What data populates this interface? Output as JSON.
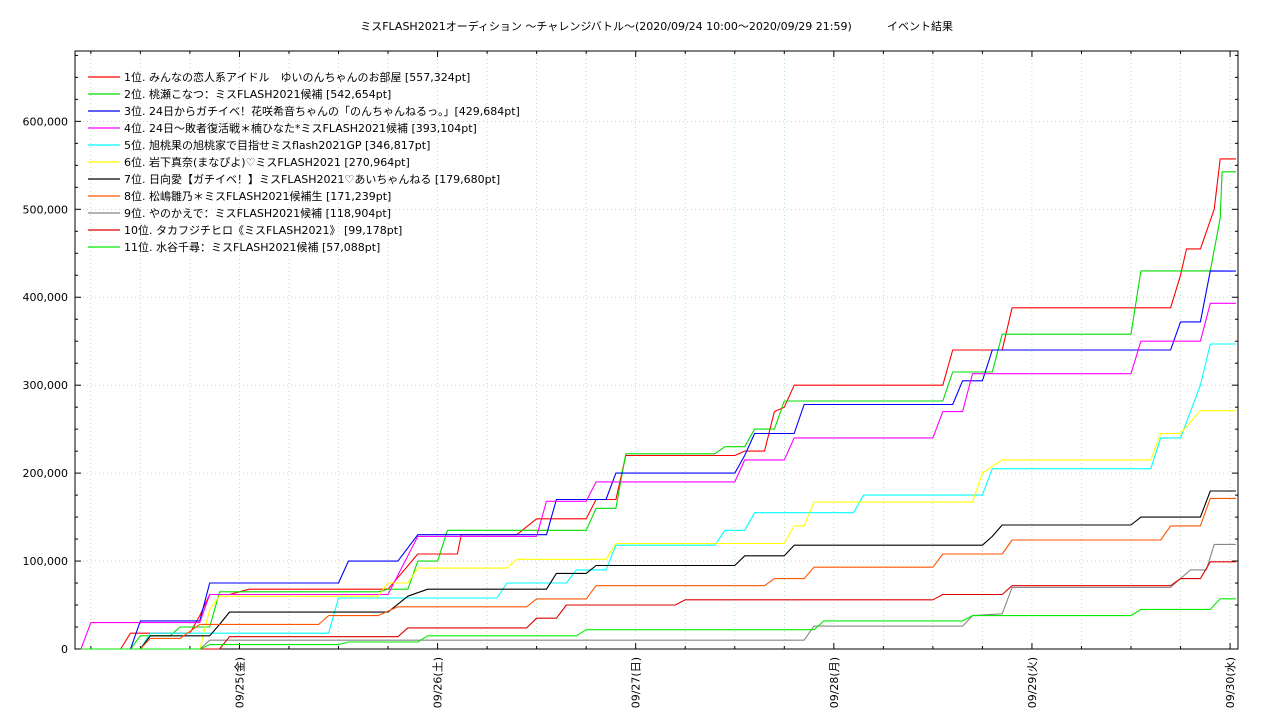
{
  "chart_data": {
    "type": "line",
    "title": "ミスFLASH2021オーディション 〜チャレンジバトル〜(2020/09/24 10:00〜2020/09/29 21:59)",
    "subtitle": "イベント結果",
    "xlabel": "",
    "ylabel": "",
    "xlim": [
      -0.83,
      5.04
    ],
    "ylim": [
      0,
      680000
    ],
    "y_ticks": [
      0,
      100000,
      200000,
      300000,
      400000,
      500000,
      600000
    ],
    "y_tick_labels": [
      "0",
      "100,000",
      "200,000",
      "300,000",
      "400,000",
      "500,000",
      "600,000"
    ],
    "x_ticks": [
      0,
      1,
      2,
      3,
      4,
      5
    ],
    "x_tick_labels": [
      "09/25(金)",
      "09/26(土)",
      "09/27(日)",
      "09/28(月)",
      "09/29(火)",
      "09/30(水)"
    ],
    "grid": true,
    "legend_position": "top-left",
    "series": [
      {
        "name": "1位. みんなの恋人系アイドル　ゆいのんちゃんのお部屋 [557,324pt]",
        "color": "#ff0000",
        "points": [
          [
            -0.8,
            0
          ],
          [
            -0.6,
            0
          ],
          [
            -0.55,
            18000
          ],
          [
            -0.25,
            18000
          ],
          [
            -0.2,
            38000
          ],
          [
            -0.15,
            62000
          ],
          [
            -0.05,
            62000
          ],
          [
            0.05,
            68000
          ],
          [
            0.75,
            68000
          ],
          [
            0.9,
            108000
          ],
          [
            1.1,
            108000
          ],
          [
            1.12,
            130000
          ],
          [
            1.4,
            130000
          ],
          [
            1.5,
            148000
          ],
          [
            1.75,
            148000
          ],
          [
            1.8,
            170000
          ],
          [
            1.9,
            170000
          ],
          [
            1.95,
            220000
          ],
          [
            2.5,
            220000
          ],
          [
            2.55,
            225000
          ],
          [
            2.65,
            225000
          ],
          [
            2.7,
            270000
          ],
          [
            2.75,
            275000
          ],
          [
            2.8,
            300000
          ],
          [
            3.55,
            300000
          ],
          [
            3.6,
            340000
          ],
          [
            3.85,
            340000
          ],
          [
            3.9,
            388000
          ],
          [
            4.7,
            388000
          ],
          [
            4.75,
            425000
          ],
          [
            4.78,
            455000
          ],
          [
            4.85,
            455000
          ],
          [
            4.92,
            500000
          ],
          [
            4.95,
            557324
          ],
          [
            5.03,
            557324
          ]
        ]
      },
      {
        "name": "2位. 桃瀬こなつ：ミスFLASH2021候補 [542,654pt]",
        "color": "#00dd00",
        "points": [
          [
            -0.8,
            0
          ],
          [
            -0.55,
            0
          ],
          [
            -0.5,
            15000
          ],
          [
            -0.35,
            15000
          ],
          [
            -0.3,
            25000
          ],
          [
            -0.15,
            25000
          ],
          [
            -0.1,
            65000
          ],
          [
            0.7,
            65000
          ],
          [
            0.75,
            68000
          ],
          [
            0.85,
            68000
          ],
          [
            0.9,
            100000
          ],
          [
            1.0,
            100000
          ],
          [
            1.05,
            135000
          ],
          [
            1.75,
            135000
          ],
          [
            1.8,
            160000
          ],
          [
            1.9,
            160000
          ],
          [
            1.95,
            222000
          ],
          [
            2.4,
            222000
          ],
          [
            2.45,
            230000
          ],
          [
            2.55,
            230000
          ],
          [
            2.6,
            250000
          ],
          [
            2.7,
            250000
          ],
          [
            2.75,
            282000
          ],
          [
            3.55,
            282000
          ],
          [
            3.6,
            315000
          ],
          [
            3.8,
            315000
          ],
          [
            3.85,
            358000
          ],
          [
            4.5,
            358000
          ],
          [
            4.55,
            430000
          ],
          [
            4.9,
            430000
          ],
          [
            4.95,
            490000
          ],
          [
            4.96,
            542654
          ],
          [
            5.03,
            542654
          ]
        ]
      },
      {
        "name": "3位. 24日からガチイベ！花咲希音ちゃんの「のんちゃんねるっ。」[429,684pt]",
        "color": "#0000ff",
        "points": [
          [
            -0.8,
            0
          ],
          [
            -0.55,
            0
          ],
          [
            -0.5,
            32000
          ],
          [
            -0.2,
            32000
          ],
          [
            -0.15,
            75000
          ],
          [
            0.5,
            75000
          ],
          [
            0.55,
            100000
          ],
          [
            0.8,
            100000
          ],
          [
            0.9,
            130000
          ],
          [
            1.55,
            130000
          ],
          [
            1.6,
            170000
          ],
          [
            1.85,
            170000
          ],
          [
            1.9,
            200000
          ],
          [
            2.5,
            200000
          ],
          [
            2.55,
            220000
          ],
          [
            2.6,
            245000
          ],
          [
            2.8,
            245000
          ],
          [
            2.85,
            278000
          ],
          [
            3.6,
            278000
          ],
          [
            3.65,
            305000
          ],
          [
            3.75,
            305000
          ],
          [
            3.8,
            340000
          ],
          [
            4.7,
            340000
          ],
          [
            4.75,
            372000
          ],
          [
            4.85,
            372000
          ],
          [
            4.9,
            430000
          ],
          [
            5.03,
            429684
          ]
        ]
      },
      {
        "name": "4位. 24日〜敗者復活戦＊楠ひなた*ミスFLASH2021候補 [393,104pt]",
        "color": "#ff00ff",
        "points": [
          [
            -0.8,
            0
          ],
          [
            -0.75,
            30000
          ],
          [
            -0.2,
            30000
          ],
          [
            -0.15,
            62000
          ],
          [
            0.75,
            62000
          ],
          [
            0.9,
            128000
          ],
          [
            1.5,
            128000
          ],
          [
            1.55,
            168000
          ],
          [
            1.75,
            168000
          ],
          [
            1.8,
            190000
          ],
          [
            2.5,
            190000
          ],
          [
            2.55,
            215000
          ],
          [
            2.75,
            215000
          ],
          [
            2.8,
            240000
          ],
          [
            3.5,
            240000
          ],
          [
            3.55,
            270000
          ],
          [
            3.65,
            270000
          ],
          [
            3.7,
            313000
          ],
          [
            4.5,
            313000
          ],
          [
            4.55,
            350000
          ],
          [
            4.85,
            350000
          ],
          [
            4.9,
            393104
          ],
          [
            5.03,
            393104
          ]
        ]
      },
      {
        "name": "5位. 旭桃果の旭桃家で目指せミスflash2021GP [346,817pt]",
        "color": "#00ffff",
        "points": [
          [
            -0.8,
            0
          ],
          [
            -0.5,
            0
          ],
          [
            -0.45,
            18000
          ],
          [
            0.45,
            18000
          ],
          [
            0.5,
            58000
          ],
          [
            1.3,
            58000
          ],
          [
            1.35,
            75000
          ],
          [
            1.65,
            75000
          ],
          [
            1.7,
            90000
          ],
          [
            1.85,
            90000
          ],
          [
            1.9,
            118000
          ],
          [
            2.4,
            118000
          ],
          [
            2.45,
            135000
          ],
          [
            2.55,
            135000
          ],
          [
            2.6,
            155000
          ],
          [
            3.1,
            155000
          ],
          [
            3.15,
            175000
          ],
          [
            3.75,
            175000
          ],
          [
            3.8,
            205000
          ],
          [
            4.6,
            205000
          ],
          [
            4.65,
            240000
          ],
          [
            4.75,
            240000
          ],
          [
            4.85,
            300000
          ],
          [
            4.9,
            346817
          ],
          [
            5.03,
            346817
          ]
        ]
      },
      {
        "name": "6位. 岩下真奈(まなぴよ)♡ミスFLASH2021 [270,964pt]",
        "color": "#ffff00",
        "points": [
          [
            -0.8,
            0
          ],
          [
            -0.2,
            0
          ],
          [
            -0.15,
            45000
          ],
          [
            -0.1,
            60000
          ],
          [
            0.7,
            60000
          ],
          [
            0.75,
            75000
          ],
          [
            0.85,
            75000
          ],
          [
            0.9,
            92000
          ],
          [
            1.35,
            92000
          ],
          [
            1.4,
            102000
          ],
          [
            1.85,
            102000
          ],
          [
            1.9,
            120000
          ],
          [
            2.75,
            120000
          ],
          [
            2.8,
            140000
          ],
          [
            2.85,
            140000
          ],
          [
            2.9,
            167000
          ],
          [
            3.7,
            167000
          ],
          [
            3.75,
            200000
          ],
          [
            3.85,
            215000
          ],
          [
            4.6,
            215000
          ],
          [
            4.65,
            245000
          ],
          [
            4.75,
            245000
          ],
          [
            4.85,
            270964
          ],
          [
            5.03,
            270964
          ]
        ]
      },
      {
        "name": "7位. 日向愛【ガチイベ！】ミスFLASH2021♡あいちゃんねる [179,680pt]",
        "color": "#000000",
        "points": [
          [
            -0.8,
            0
          ],
          [
            -0.5,
            0
          ],
          [
            -0.45,
            15000
          ],
          [
            -0.15,
            15000
          ],
          [
            -0.1,
            28000
          ],
          [
            -0.05,
            42000
          ],
          [
            0.75,
            42000
          ],
          [
            0.85,
            60000
          ],
          [
            0.95,
            68000
          ],
          [
            1.55,
            68000
          ],
          [
            1.6,
            86000
          ],
          [
            1.75,
            86000
          ],
          [
            1.8,
            95000
          ],
          [
            2.5,
            95000
          ],
          [
            2.55,
            106000
          ],
          [
            2.75,
            106000
          ],
          [
            2.8,
            118000
          ],
          [
            3.75,
            118000
          ],
          [
            3.8,
            128000
          ],
          [
            3.85,
            141000
          ],
          [
            4.5,
            141000
          ],
          [
            4.55,
            150000
          ],
          [
            4.85,
            150000
          ],
          [
            4.9,
            179680
          ],
          [
            5.03,
            179680
          ]
        ]
      },
      {
        "name": "8位. 松嶋雛乃＊ミスFLASH2021候補生 [171,239pt]",
        "color": "#ff5500",
        "points": [
          [
            -0.8,
            0
          ],
          [
            -0.5,
            0
          ],
          [
            -0.45,
            12000
          ],
          [
            -0.3,
            12000
          ],
          [
            -0.2,
            28000
          ],
          [
            0.4,
            28000
          ],
          [
            0.45,
            38000
          ],
          [
            0.7,
            38000
          ],
          [
            0.8,
            48000
          ],
          [
            1.45,
            48000
          ],
          [
            1.5,
            57000
          ],
          [
            1.75,
            57000
          ],
          [
            1.8,
            72000
          ],
          [
            2.65,
            72000
          ],
          [
            2.7,
            80000
          ],
          [
            2.85,
            80000
          ],
          [
            2.9,
            93000
          ],
          [
            3.5,
            93000
          ],
          [
            3.55,
            108000
          ],
          [
            3.85,
            108000
          ],
          [
            3.9,
            124000
          ],
          [
            4.65,
            124000
          ],
          [
            4.7,
            140000
          ],
          [
            4.85,
            140000
          ],
          [
            4.9,
            171239
          ],
          [
            5.03,
            171239
          ]
        ]
      },
      {
        "name": "9位. やのかえで：ミスFLASH2021候補 [118,904pt]",
        "color": "#888888",
        "points": [
          [
            -0.8,
            0
          ],
          [
            -0.2,
            0
          ],
          [
            -0.15,
            10000
          ],
          [
            2.85,
            10000
          ],
          [
            2.9,
            26000
          ],
          [
            3.65,
            26000
          ],
          [
            3.7,
            38000
          ],
          [
            3.85,
            40000
          ],
          [
            3.9,
            70000
          ],
          [
            4.7,
            70000
          ],
          [
            4.75,
            80000
          ],
          [
            4.8,
            90000
          ],
          [
            4.88,
            90000
          ],
          [
            4.92,
            118904
          ],
          [
            5.03,
            118904
          ]
        ]
      },
      {
        "name": "10位. タカフジチヒロ《ミスFLASH2021》 [99,178pt]",
        "color": "#dd0000",
        "points": [
          [
            -0.8,
            0
          ],
          [
            -0.1,
            0
          ],
          [
            -0.05,
            14000
          ],
          [
            0.8,
            14000
          ],
          [
            0.85,
            24000
          ],
          [
            1.45,
            24000
          ],
          [
            1.5,
            35000
          ],
          [
            1.6,
            35000
          ],
          [
            1.65,
            50000
          ],
          [
            2.2,
            50000
          ],
          [
            2.25,
            56000
          ],
          [
            3.5,
            56000
          ],
          [
            3.55,
            62000
          ],
          [
            3.85,
            62000
          ],
          [
            3.9,
            72000
          ],
          [
            4.7,
            72000
          ],
          [
            4.75,
            80000
          ],
          [
            4.85,
            80000
          ],
          [
            4.9,
            99178
          ],
          [
            5.03,
            99178
          ]
        ]
      },
      {
        "name": "11位. 水谷千尋：ミスFLASH2021候補 [57,088pt]",
        "color": "#00ee00",
        "points": [
          [
            -0.8,
            0
          ],
          [
            -0.2,
            0
          ],
          [
            -0.15,
            5000
          ],
          [
            0.5,
            5000
          ],
          [
            0.55,
            8000
          ],
          [
            0.9,
            8000
          ],
          [
            0.95,
            15000
          ],
          [
            1.7,
            15000
          ],
          [
            1.75,
            22000
          ],
          [
            2.9,
            22000
          ],
          [
            2.95,
            32000
          ],
          [
            3.65,
            32000
          ],
          [
            3.7,
            38000
          ],
          [
            4.5,
            38000
          ],
          [
            4.55,
            45000
          ],
          [
            4.9,
            45000
          ],
          [
            4.95,
            57088
          ],
          [
            5.03,
            57088
          ]
        ]
      }
    ]
  }
}
